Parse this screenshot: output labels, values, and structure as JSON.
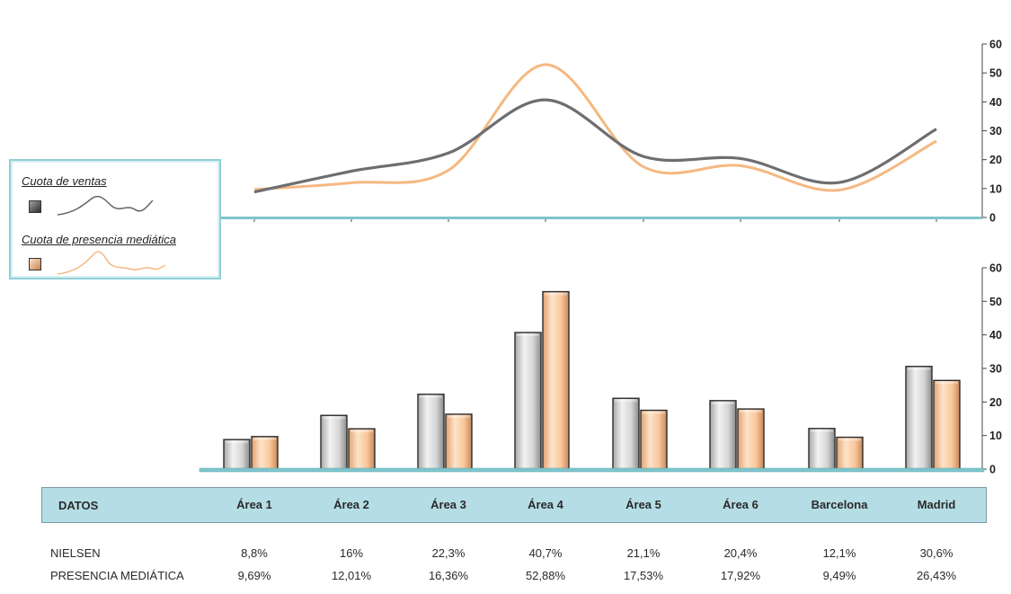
{
  "chart_data": [
    {
      "type": "line",
      "categories": [
        "Área 1",
        "Área 2",
        "Área 3",
        "Área 4",
        "Área 5",
        "Área 6",
        "Barcelona",
        "Madrid"
      ],
      "series": [
        {
          "name": "Cuota de ventas",
          "values": [
            8.8,
            16,
            22.3,
            40.7,
            21.1,
            20.4,
            12.1,
            30.6
          ],
          "color": "#6e6e72"
        },
        {
          "name": "Cuota de presencia mediática",
          "values": [
            9.69,
            12.01,
            16.36,
            52.88,
            17.53,
            17.92,
            9.49,
            26.43
          ],
          "color": "#f5b880"
        }
      ],
      "ylim": [
        0,
        60
      ],
      "yticks": [
        "0",
        "10",
        "20",
        "30",
        "40",
        "50",
        "60"
      ],
      "smooth": true,
      "legend": "left"
    },
    {
      "type": "bar",
      "categories": [
        "Área 1",
        "Área 2",
        "Área 3",
        "Área 4",
        "Área 5",
        "Área 6",
        "Barcelona",
        "Madrid"
      ],
      "series": [
        {
          "name": "Cuota de ventas",
          "values": [
            8.8,
            16,
            22.3,
            40.7,
            21.1,
            20.4,
            12.1,
            30.6
          ],
          "color": "#d8d8d8"
        },
        {
          "name": "Cuota de presencia mediática",
          "values": [
            9.69,
            12.01,
            16.36,
            52.88,
            17.53,
            17.92,
            9.49,
            26.43
          ],
          "color": "#fbd2ad"
        }
      ],
      "ylim": [
        0,
        60
      ],
      "yticks": [
        "0",
        "10",
        "20",
        "30",
        "40",
        "50",
        "60"
      ]
    }
  ],
  "legend": {
    "sales_label": "Cuota de ventas",
    "media_label": "Cuota de presencia mediática"
  },
  "table": {
    "header_label": "DATOS",
    "columns": [
      "Área 1",
      "Área 2",
      "Área 3",
      "Área 4",
      "Área 5",
      "Área 6",
      "Barcelona",
      "Madrid"
    ],
    "rows": [
      {
        "label": "NIELSEN",
        "values": [
          "8,8%",
          "16%",
          "22,3%",
          "40,7%",
          "21,1%",
          "20,4%",
          "12,1%",
          "30,6%"
        ]
      },
      {
        "label": "PRESENCIA MEDIÁTICA",
        "values": [
          "9,69%",
          "12,01%",
          "16,36%",
          "52,88%",
          "17,53%",
          "17,92%",
          "9,49%",
          "26,43%"
        ]
      }
    ]
  },
  "colors": {
    "axis": "#7fc4cc",
    "header_bg": "#b5dde5"
  }
}
